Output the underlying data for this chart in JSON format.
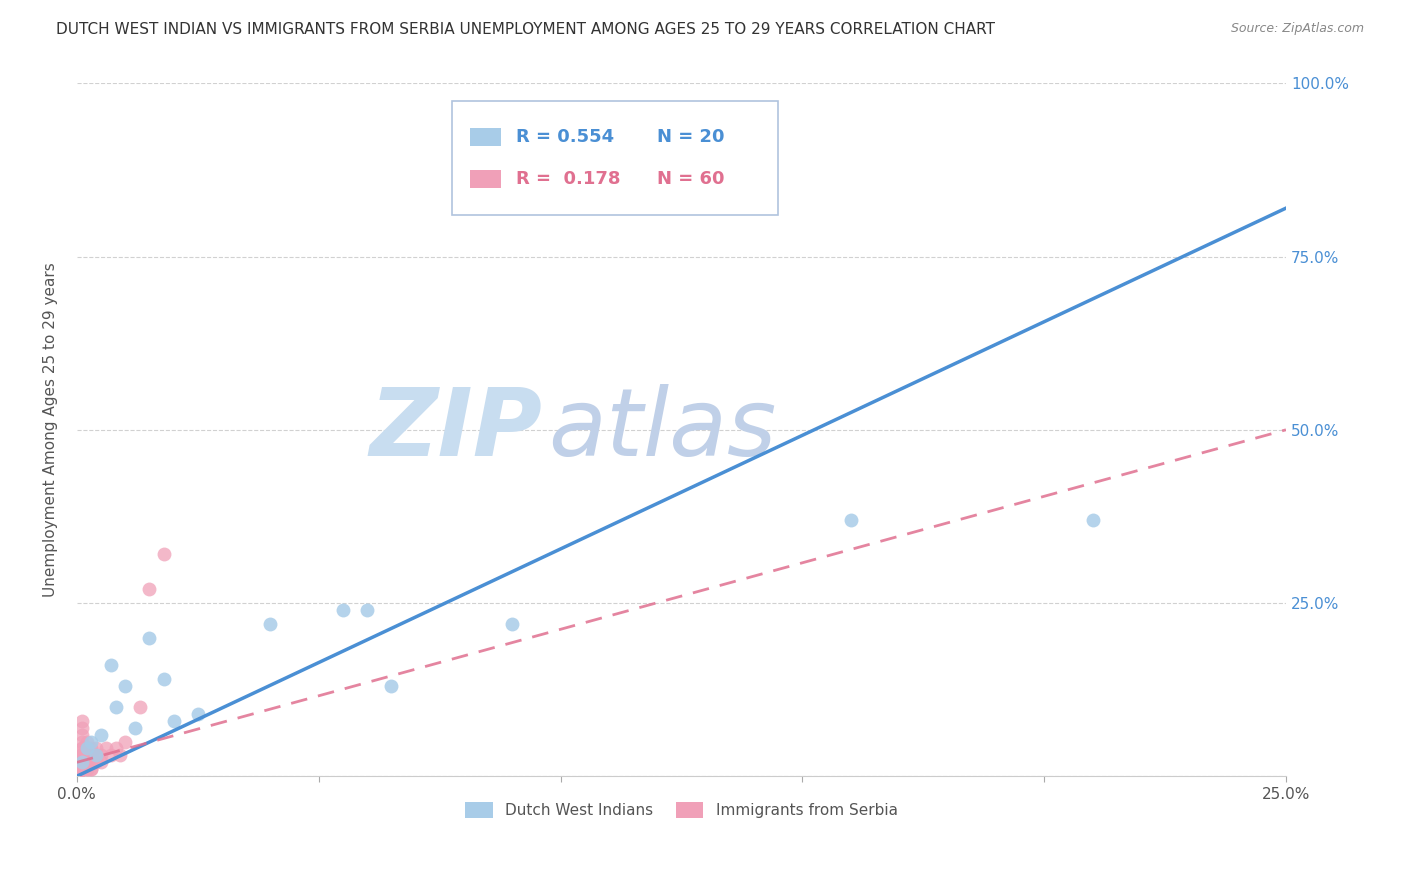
{
  "title": "DUTCH WEST INDIAN VS IMMIGRANTS FROM SERBIA UNEMPLOYMENT AMONG AGES 25 TO 29 YEARS CORRELATION CHART",
  "source": "Source: ZipAtlas.com",
  "ylabel": "Unemployment Among Ages 25 to 29 years",
  "xlabel": "",
  "watermark_zip": "ZIP",
  "watermark_atlas": "atlas",
  "xmin": 0.0,
  "xmax": 0.25,
  "ymin": 0.0,
  "ymax": 1.0,
  "xticks": [
    0.0,
    0.05,
    0.1,
    0.15,
    0.2,
    0.25
  ],
  "ytick_positions": [
    0.0,
    0.25,
    0.5,
    0.75,
    1.0
  ],
  "ytick_labels": [
    "",
    "25.0%",
    "50.0%",
    "75.0%",
    "100.0%"
  ],
  "blue_R": 0.554,
  "blue_N": 20,
  "pink_R": 0.178,
  "pink_N": 60,
  "legend_label_blue": "Dutch West Indians",
  "legend_label_pink": "Immigrants from Serbia",
  "blue_line_x0": 0.0,
  "blue_line_y0": 0.0,
  "blue_line_x1": 0.25,
  "blue_line_y1": 0.82,
  "pink_line_x0": 0.0,
  "pink_line_y0": 0.02,
  "pink_line_x1": 0.25,
  "pink_line_y1": 0.5,
  "blue_scatter_x": [
    0.001,
    0.002,
    0.003,
    0.004,
    0.005,
    0.007,
    0.008,
    0.01,
    0.012,
    0.015,
    0.018,
    0.02,
    0.025,
    0.04,
    0.055,
    0.06,
    0.065,
    0.09,
    0.16,
    0.21
  ],
  "blue_scatter_y": [
    0.02,
    0.04,
    0.05,
    0.03,
    0.06,
    0.16,
    0.1,
    0.13,
    0.07,
    0.2,
    0.14,
    0.08,
    0.09,
    0.22,
    0.24,
    0.24,
    0.13,
    0.22,
    0.37,
    0.37
  ],
  "pink_scatter_x": [
    0.001,
    0.001,
    0.001,
    0.001,
    0.001,
    0.001,
    0.001,
    0.001,
    0.001,
    0.001,
    0.001,
    0.001,
    0.001,
    0.001,
    0.001,
    0.001,
    0.001,
    0.001,
    0.001,
    0.001,
    0.001,
    0.001,
    0.001,
    0.001,
    0.001,
    0.001,
    0.001,
    0.001,
    0.001,
    0.001,
    0.002,
    0.002,
    0.002,
    0.002,
    0.002,
    0.002,
    0.002,
    0.002,
    0.002,
    0.002,
    0.003,
    0.003,
    0.003,
    0.003,
    0.003,
    0.003,
    0.003,
    0.004,
    0.004,
    0.004,
    0.005,
    0.005,
    0.006,
    0.007,
    0.008,
    0.009,
    0.01,
    0.013,
    0.015,
    0.018
  ],
  "pink_scatter_y": [
    0.01,
    0.01,
    0.01,
    0.01,
    0.01,
    0.01,
    0.01,
    0.01,
    0.01,
    0.01,
    0.01,
    0.01,
    0.01,
    0.01,
    0.01,
    0.02,
    0.02,
    0.02,
    0.02,
    0.03,
    0.03,
    0.03,
    0.04,
    0.04,
    0.05,
    0.06,
    0.07,
    0.08,
    0.03,
    0.02,
    0.01,
    0.02,
    0.02,
    0.03,
    0.03,
    0.04,
    0.05,
    0.01,
    0.02,
    0.04,
    0.01,
    0.02,
    0.03,
    0.04,
    0.01,
    0.02,
    0.03,
    0.02,
    0.03,
    0.04,
    0.02,
    0.03,
    0.04,
    0.03,
    0.04,
    0.03,
    0.05,
    0.1,
    0.27,
    0.32
  ],
  "blue_line_color": "#4a8fd4",
  "pink_line_color": "#e07090",
  "blue_scatter_color": "#a8cce8",
  "pink_scatter_color": "#f0a0b8",
  "grid_color": "#cccccc",
  "background_color": "#ffffff",
  "title_color": "#333333",
  "axis_label_color": "#555555",
  "tick_label_color_right": "#4a8fd4",
  "watermark_color_zip": "#c8ddf0",
  "watermark_color_atlas": "#c0d0e8",
  "title_fontsize": 11,
  "source_fontsize": 9,
  "scatter_size": 100
}
